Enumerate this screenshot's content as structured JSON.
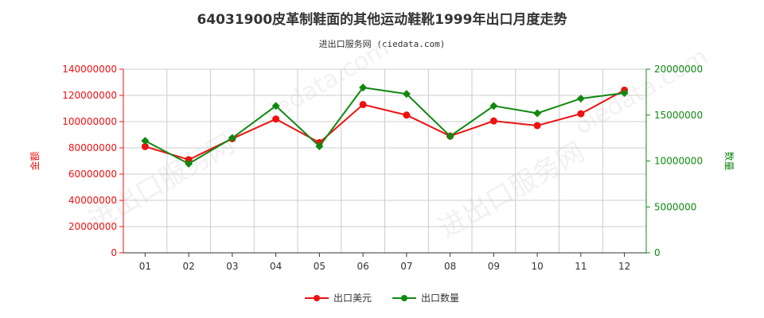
{
  "title": "64031900皮革制鞋面的其他运动鞋靴1999年出口月度走势",
  "subtitle": "进出口服务网 (ciedata.com)",
  "watermark_text": "进出口服务网",
  "colors": {
    "value": "#ee1111",
    "quantity": "#118811",
    "grid": "#cccccc",
    "axis": "#333333"
  },
  "chart_data": {
    "type": "line",
    "categories": [
      "01",
      "02",
      "03",
      "04",
      "05",
      "06",
      "07",
      "08",
      "09",
      "10",
      "11",
      "12"
    ],
    "left_axis": {
      "label": "金额",
      "min": 0,
      "max": 140000000,
      "ticks": [
        "0",
        "20000000",
        "40000000",
        "60000000",
        "80000000",
        "100000000",
        "120000000",
        "140000000"
      ]
    },
    "right_axis": {
      "label": "数量",
      "min": 0,
      "max": 20000000,
      "ticks": [
        "0",
        "5000000",
        "10000000",
        "15000000",
        "20000000"
      ]
    },
    "series": [
      {
        "name": "出口美元",
        "axis": "left",
        "values": [
          81000000,
          71000000,
          87000000,
          102000000,
          84000000,
          113000000,
          105000000,
          89000000,
          100500000,
          97000000,
          106000000,
          124000000
        ]
      },
      {
        "name": "出口数量",
        "axis": "right",
        "values": [
          12200000,
          9700000,
          12500000,
          16000000,
          11600000,
          18000000,
          17300000,
          12700000,
          16000000,
          15200000,
          16800000,
          17400000
        ]
      }
    ],
    "grid": true,
    "legend_position": "bottom-center"
  }
}
